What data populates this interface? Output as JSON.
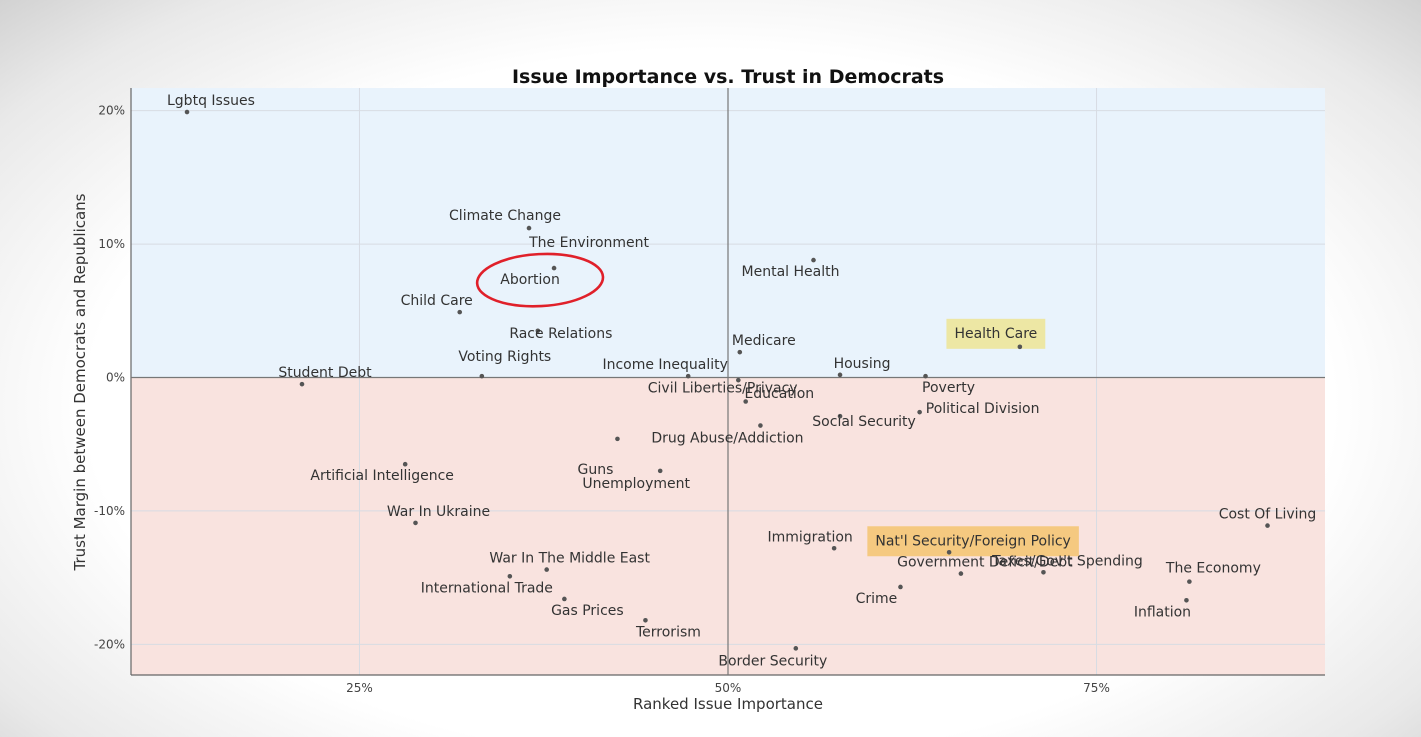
{
  "chart_data": {
    "type": "scatter",
    "title": "Issue Importance vs. Trust in Democrats",
    "xlabel": "Ranked Issue Importance",
    "ylabel": "Trust Margin between Democrats and Republicans",
    "xlim": [
      9.5,
      90.5
    ],
    "ylim": [
      -22.3,
      21.7
    ],
    "xticks": [
      {
        "v": 25,
        "label": "25%"
      },
      {
        "v": 50,
        "label": "50%"
      },
      {
        "v": 75,
        "label": "75%"
      }
    ],
    "yticks": [
      {
        "v": 20,
        "label": "20%"
      },
      {
        "v": 10,
        "label": "10%"
      },
      {
        "v": 0,
        "label": "0%"
      },
      {
        "v": -10,
        "label": "-10%"
      },
      {
        "v": -20,
        "label": "-20%"
      }
    ],
    "colors": {
      "positive_region": "#e9f3fc",
      "negative_region": "#f9e3df",
      "highlight_yellow": "#ede69a",
      "highlight_orange": "#f4c575",
      "circle": "#e0202a"
    },
    "grid": true,
    "points": [
      {
        "label": "Lgbtq Issues",
        "x": 13.3,
        "y": 19.9
      },
      {
        "label": "Climate Change",
        "x": 36.5,
        "y": 11.2
      },
      {
        "label": "The Environment",
        "x": 38.2,
        "y": 8.2
      },
      {
        "label": "Abortion",
        "x": 38.2,
        "y": 8.2,
        "circled": true
      },
      {
        "label": "Child Care",
        "x": 31.8,
        "y": 4.9
      },
      {
        "label": "Race Relations",
        "x": 37.1,
        "y": 3.5
      },
      {
        "label": "Voting Rights",
        "x": 33.3,
        "y": 0.1
      },
      {
        "label": "Student Debt",
        "x": 21.1,
        "y": -0.5
      },
      {
        "label": "Income Inequality",
        "x": 47.3,
        "y": 0.1
      },
      {
        "label": "Mental Health",
        "x": 55.8,
        "y": 8.8
      },
      {
        "label": "Medicare",
        "x": 50.8,
        "y": 1.9
      },
      {
        "label": "Housing",
        "x": 57.6,
        "y": 0.2
      },
      {
        "label": "Health Care",
        "x": 69.8,
        "y": 2.3,
        "highlight": "yellow"
      },
      {
        "label": "Poverty",
        "x": 63.4,
        "y": 0.1
      },
      {
        "label": "Education",
        "x": 50.7,
        "y": -0.2
      },
      {
        "label": "Political Division",
        "x": 63.0,
        "y": -2.6
      },
      {
        "label": "Civil Liberties/Privacy",
        "x": 51.2,
        "y": -1.8
      },
      {
        "label": "Social Security",
        "x": 57.6,
        "y": -2.9
      },
      {
        "label": "Drug Abuse/Addiction",
        "x": 52.2,
        "y": -3.6
      },
      {
        "label": "Guns",
        "x": 42.5,
        "y": -4.6
      },
      {
        "label": "Unemployment",
        "x": 45.4,
        "y": -7.0
      },
      {
        "label": "Artificial Intelligence",
        "x": 28.1,
        "y": -6.5
      },
      {
        "label": "War In Ukraine",
        "x": 28.8,
        "y": -10.9
      },
      {
        "label": "War In The Middle East",
        "x": 37.7,
        "y": -14.4
      },
      {
        "label": "International Trade",
        "x": 35.2,
        "y": -14.9
      },
      {
        "label": "Gas Prices",
        "x": 38.9,
        "y": -16.6
      },
      {
        "label": "Terrorism",
        "x": 44.4,
        "y": -18.2
      },
      {
        "label": "Border Security",
        "x": 54.6,
        "y": -20.3
      },
      {
        "label": "Immigration",
        "x": 57.2,
        "y": -12.8
      },
      {
        "label": "Nat'l Security/Foreign Policy",
        "x": 65.0,
        "y": -13.1,
        "highlight": "orange"
      },
      {
        "label": "Government Deficit/Debt",
        "x": 65.8,
        "y": -14.7
      },
      {
        "label": "Crime",
        "x": 61.7,
        "y": -15.7
      },
      {
        "label": "Taxes/Gov't Spending",
        "x": 71.4,
        "y": -14.6
      },
      {
        "label": "The Economy",
        "x": 81.3,
        "y": -15.3
      },
      {
        "label": "Inflation",
        "x": 81.1,
        "y": -16.7
      },
      {
        "label": "Cost Of Living",
        "x": 86.6,
        "y": -11.1
      }
    ]
  }
}
